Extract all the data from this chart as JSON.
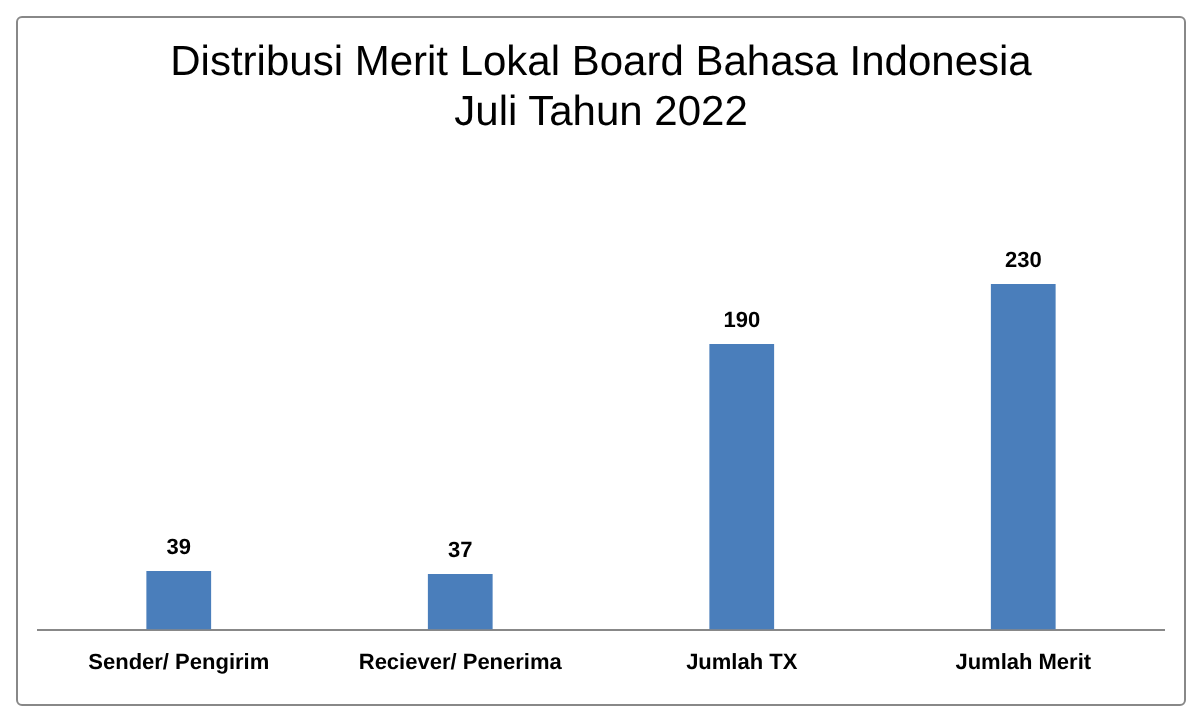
{
  "chart_data": {
    "type": "bar",
    "title": "Distribusi Merit Lokal Board Bahasa Indonesia",
    "subtitle": "Juli Tahun 2022",
    "categories": [
      "Sender/ Pengirim",
      "Reciever/ Penerima",
      "Jumlah TX",
      "Jumlah Merit"
    ],
    "values": [
      39,
      37,
      190,
      230
    ],
    "color": "#4a7ebb",
    "data_labels": true,
    "grid": false,
    "legend": false
  }
}
